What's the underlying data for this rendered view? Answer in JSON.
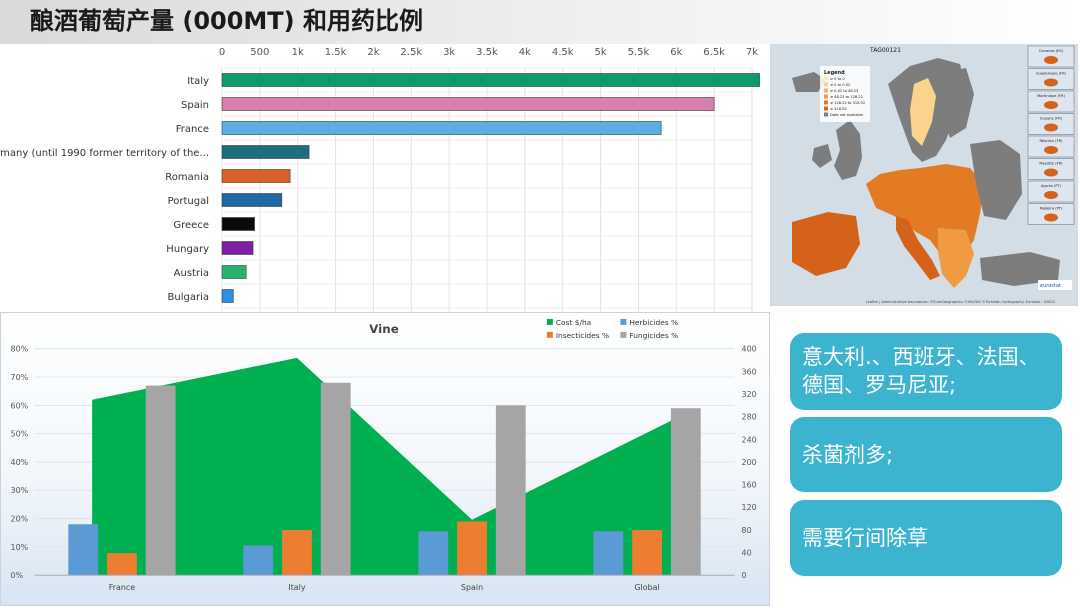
{
  "title": "酿酒葡萄产量 (000MT) 和用药比例",
  "chart_data": [
    {
      "type": "bar",
      "orientation": "horizontal",
      "categories": [
        "Italy",
        "Spain",
        "France",
        "Germany (until 1990 former territory of the...",
        "Romania",
        "Portugal",
        "Greece",
        "Hungary",
        "Austria",
        "Bulgaria"
      ],
      "values": [
        7100,
        6500,
        5800,
        1150,
        900,
        790,
        430,
        410,
        320,
        150
      ],
      "bar_colors": [
        "#0e9b6b",
        "#d77fae",
        "#5aaee3",
        "#1f6d80",
        "#d6612a",
        "#1f6aa5",
        "#0a0a0a",
        "#7d1fa0",
        "#27b36a",
        "#2a8fe0"
      ],
      "xlim": [
        0,
        7000
      ],
      "x_ticks": [
        "0",
        "500",
        "1k",
        "1.5k",
        "2k",
        "2.5k",
        "3k",
        "3.5k",
        "4k",
        "4.5k",
        "5k",
        "5.5k",
        "6k",
        "6.5k",
        "7k"
      ],
      "grid": true
    },
    {
      "type": "bar+area",
      "title": "Vine",
      "categories": [
        "France",
        "Italy",
        "Spain",
        "Global"
      ],
      "series": [
        {
          "name": "Herbicides %",
          "axis": "left",
          "color": "#5b9bd5",
          "values": [
            18,
            10.5,
            15.5,
            15.5
          ]
        },
        {
          "name": "Insecticides %",
          "axis": "left",
          "color": "#ed7d31",
          "values": [
            7.8,
            16,
            19,
            16
          ]
        },
        {
          "name": "Fungicides %",
          "axis": "left",
          "color": "#a5a5a5",
          "values": [
            67,
            68,
            60,
            59
          ]
        },
        {
          "name": "Cost $/ha",
          "axis": "right",
          "type": "area",
          "color": "#00b050",
          "values": [
            310,
            384,
            98,
            278
          ]
        }
      ],
      "left_ticks": [
        "0%",
        "10%",
        "20%",
        "30%",
        "40%",
        "50%",
        "60%",
        "70%",
        "80%"
      ],
      "right_ticks": [
        "0",
        "40",
        "80",
        "120",
        "160",
        "200",
        "240",
        "280",
        "320",
        "360",
        "400"
      ],
      "ylim_left": [
        0,
        80
      ],
      "ylim_right": [
        0,
        400
      ],
      "legend_position": "top-right"
    }
  ],
  "map": {
    "header": "TAG00121",
    "legend_title": "Legend",
    "legend_items": [
      {
        "label": "≥ 0 to 0",
        "color": "#fde6b2"
      },
      {
        "label": "≥ 0 to 0.02",
        "color": "#fcd38b"
      },
      {
        "label": "≥ 0.02 to 48.23",
        "color": "#f7b267"
      },
      {
        "label": "≥ 48.23 to 128.22",
        "color": "#f09a42"
      },
      {
        "label": "≥ 128.22 to 318.92",
        "color": "#e37b24"
      },
      {
        "label": "≥ 318.92",
        "color": "#d4621a"
      },
      {
        "label": "Data not available",
        "color": "#7d7d7d"
      }
    ],
    "insets": [
      "Canarias (ES)",
      "Guadeloupe (FR)",
      "Martinique (FR)",
      "Guyane (FR)",
      "Réunion (FR)",
      "Mayotte (FR)",
      "Açores (PT)",
      "Madeira (PT)"
    ],
    "brand": "eurostat",
    "attribution": "Leaflet | Administrative boundaries: ©EuroGeographics ©UN-FAO ©Turkstat; Cartography: Eurostat - GISCO"
  },
  "callouts": [
    "意大利.、西班牙、法国、德国、罗马尼亚;",
    "杀菌剂多;",
    "需要行间除草"
  ]
}
